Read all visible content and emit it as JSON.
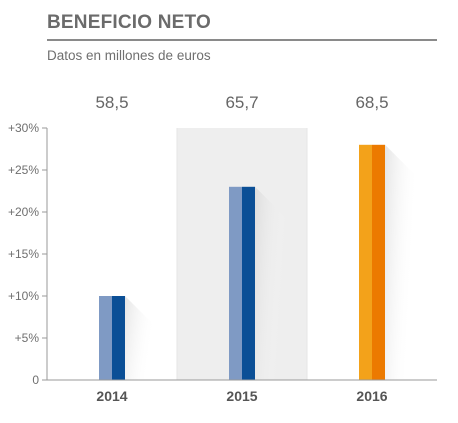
{
  "chart_data": {
    "type": "bar",
    "title": "BENEFICIO NETO",
    "subtitle": "Datos en millones de euros",
    "categories": [
      "2014",
      "2015",
      "2016"
    ],
    "values": [
      10,
      23,
      28
    ],
    "data_labels": [
      "58,5",
      "65,7",
      "68,5"
    ],
    "yticks": [
      "0",
      "+5%",
      "+10%",
      "+15%",
      "+20%",
      "+25%",
      "+30%"
    ],
    "ylim": [
      0,
      30
    ],
    "grid": false,
    "highlight_category": "2015",
    "colors": {
      "bar_light": "#7f9ac4",
      "bar_dark": "#0b4f96",
      "bar_highlight_light": "#f3a21a",
      "bar_highlight_dark": "#ec7a00",
      "highlight_band": "#eeeeee",
      "title_rule": "#8a8a8a"
    }
  }
}
